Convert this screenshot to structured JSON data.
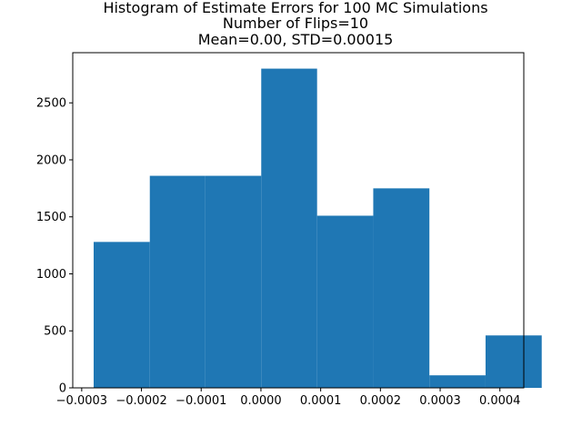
{
  "chart_data": {
    "type": "bar",
    "title_lines": [
      "Histogram of Estimate Errors for 100 MC Simulations",
      "Number of Flips=10",
      "Mean=0.00, STD=0.00015"
    ],
    "xlabel": "",
    "ylabel": "",
    "bins": [
      {
        "x0": -0.00028,
        "x1": -0.000186,
        "value": 1280
      },
      {
        "x0": -0.000186,
        "x1": -9.3e-05,
        "value": 1860
      },
      {
        "x0": -9.3e-05,
        "x1": 5e-07,
        "value": 1860
      },
      {
        "x0": 5e-07,
        "x1": 9.4e-05,
        "value": 2800
      },
      {
        "x0": 9.4e-05,
        "x1": 0.000188,
        "value": 1510
      },
      {
        "x0": 0.000188,
        "x1": 0.000282,
        "value": 1750
      },
      {
        "x0": 0.000282,
        "x1": 0.000376,
        "value": 110
      },
      {
        "x0": 0.000376,
        "x1": 0.00047,
        "value": 460
      }
    ],
    "xlim": [
      -0.000315,
      0.00044
    ],
    "ylim": [
      0,
      2940
    ],
    "xticks": [
      {
        "value": -0.0003,
        "label": "−0.0003"
      },
      {
        "value": -0.0002,
        "label": "−0.0002"
      },
      {
        "value": -0.0001,
        "label": "−0.0001"
      },
      {
        "value": 0.0,
        "label": "0.0000"
      },
      {
        "value": 0.0001,
        "label": "0.0001"
      },
      {
        "value": 0.0002,
        "label": "0.0002"
      },
      {
        "value": 0.0003,
        "label": "0.0003"
      },
      {
        "value": 0.0004,
        "label": "0.0004"
      }
    ],
    "yticks": [
      {
        "value": 0,
        "label": "0"
      },
      {
        "value": 500,
        "label": "500"
      },
      {
        "value": 1000,
        "label": "1000"
      },
      {
        "value": 1500,
        "label": "1500"
      },
      {
        "value": 2000,
        "label": "2000"
      },
      {
        "value": 2500,
        "label": "2500"
      }
    ],
    "bar_color": "#1f77b4",
    "grid": false,
    "legend": "none"
  }
}
